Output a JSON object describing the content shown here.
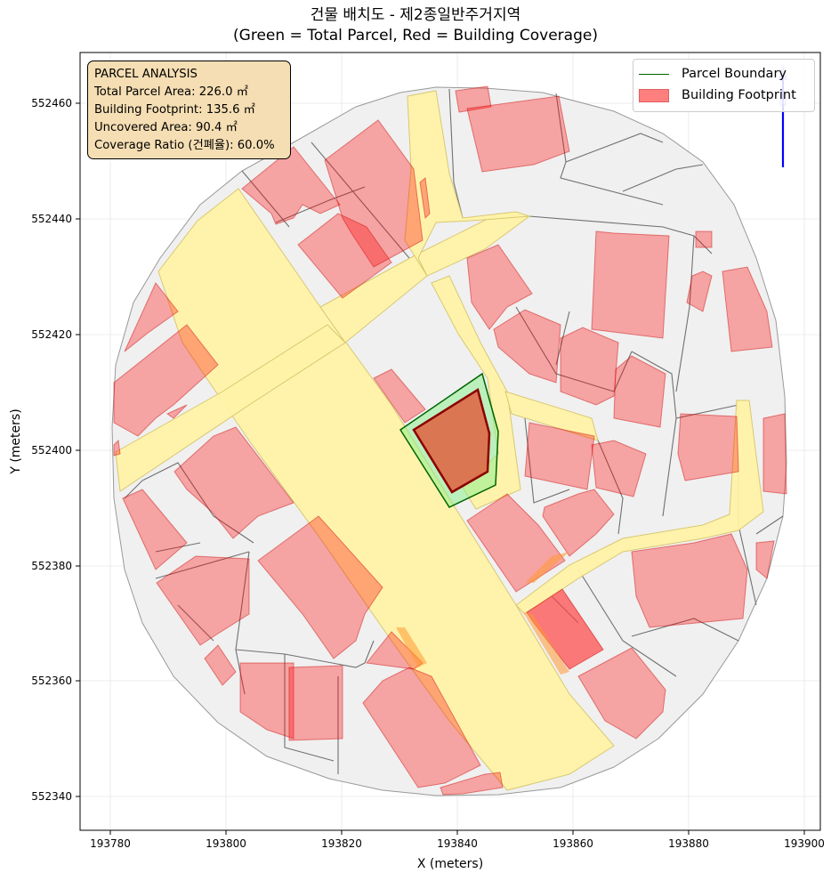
{
  "title": {
    "line1": "건물 배치도 - 제2종일반주거지역",
    "line2": "(Green = Total Parcel, Red = Building Coverage)"
  },
  "axes": {
    "xlabel": "X (meters)",
    "ylabel": "Y (meters)",
    "x_ticks": [
      "193780",
      "193800",
      "193820",
      "193840",
      "193860",
      "193880",
      "193900"
    ],
    "y_ticks": [
      "552340",
      "552360",
      "552380",
      "552400",
      "552420",
      "552440",
      "552460"
    ]
  },
  "info_box": {
    "heading": "PARCEL ANALYSIS",
    "total_area": "Total Parcel Area: 226.0 ㎡",
    "footprint": "Building Footprint: 135.6 ㎡",
    "uncovered": "Uncovered Area: 90.4 ㎡",
    "coverage": "Coverage Ratio (건폐율): 60.0%"
  },
  "legend": {
    "parcel_label": "Parcel Boundary",
    "building_label": "Building Footprint"
  },
  "colors": {
    "parcel_line": "#006400",
    "parcel_fill": "#90ee90",
    "building_fill": "#ff0000",
    "road_fill": "#fff2a8",
    "lot_fill": "#f0f0f0",
    "info_box_bg": "#f5deb3",
    "north_arrow": "#0000ff"
  },
  "icons": {
    "north_arrow": "north-arrow-icon"
  }
}
